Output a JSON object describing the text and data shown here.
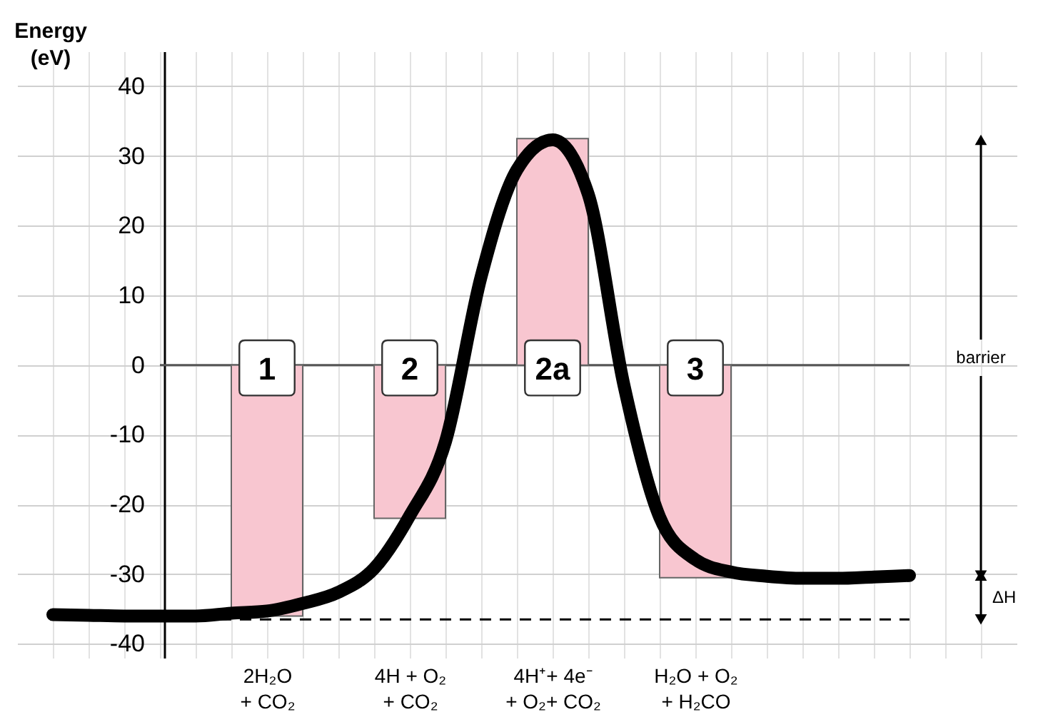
{
  "chart_data": {
    "type": "bar",
    "ylabel": "Energy\n(eV)",
    "categories": [
      null,
      null,
      null,
      null,
      null,
      null,
      "2H₂O\n+ CO₂",
      null,
      null,
      null,
      "4H + O₂\n+ CO₂",
      null,
      null,
      null,
      "4H⁺+ 4e⁻\n+ O₂+ CO₂",
      null,
      null,
      null,
      "H₂O + O₂\n+ H₂CO",
      null,
      null,
      null,
      null,
      null,
      null,
      null,
      null
    ],
    "ylim": [
      -42,
      45
    ],
    "yticks": [
      -40,
      -30,
      -20,
      -10,
      0,
      10,
      20,
      30,
      40
    ],
    "series": [
      {
        "color": "#f8c6d0",
        "values": [
          null,
          null,
          null,
          null,
          null,
          null,
          -36,
          null,
          null,
          null,
          -22,
          null,
          null,
          null,
          32.5,
          null,
          null,
          null,
          -30.5,
          null,
          null,
          null,
          null,
          null,
          null,
          null,
          null
        ]
      },
      {
        "type": "line",
        "color": "#000000",
        "values": [
          -35.8,
          -35.9,
          -36,
          -36,
          -36,
          -35.6,
          -35.3,
          -34.2,
          -32.6,
          -29.2,
          -21.6,
          -11,
          12.7,
          28,
          32.3,
          24.5,
          -2.9,
          -21.8,
          -27.9,
          -29.7,
          -30.3,
          -30.6,
          -30.6,
          -30.4,
          -30.2,
          null,
          null
        ]
      }
    ],
    "ref_lines": [
      {
        "axis": "y",
        "value": 0,
        "color": "#555555",
        "line_style": "solid"
      },
      {
        "axis": "y",
        "value": -36.5,
        "color": "#000000",
        "line_style": "dashed"
      }
    ],
    "annotations": [
      "1",
      "2",
      "2a",
      "3",
      "barrier",
      "ΔH"
    ],
    "grid": true
  }
}
